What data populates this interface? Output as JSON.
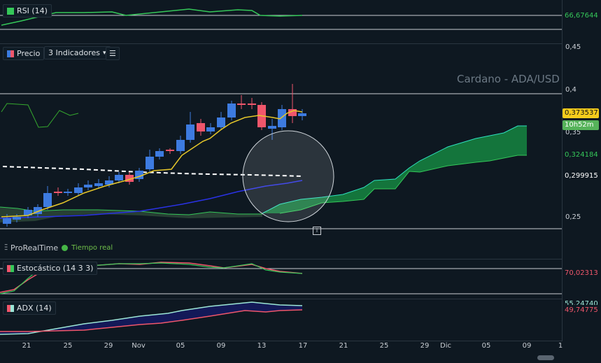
{
  "rsi": {
    "label": "RSI (14)",
    "value": "66,67644"
  },
  "price": {
    "label": "Precio",
    "indicators": "3 Indicadores",
    "watermark": "Cardano - ADA/USD",
    "ticks": [
      "0,45",
      "0,4",
      "0,35",
      "0,25"
    ],
    "badges": {
      "last": "0,373537",
      "timer": "10h52m",
      "green": "0,324184",
      "white": "0,299915"
    },
    "brand": "ProRealTime",
    "realtime": "Tiempo real",
    "info_icon": "i"
  },
  "stochastic": {
    "label": "Estocástico (14 3 3)",
    "value": "70,02313"
  },
  "adx": {
    "label": "ADX (14)",
    "value": "49,74775",
    "value2": "55,24740"
  },
  "xaxis": [
    "21",
    "25",
    "29",
    "Nov",
    "05",
    "09",
    "13",
    "17",
    "21",
    "25",
    "29",
    "Dic",
    "05",
    "09",
    "1"
  ],
  "colors": {
    "up": "#3d7be0",
    "down": "#f0566b",
    "ma": "#e6c72a",
    "cloud": "#1f9a4d",
    "rsi": "#35c759"
  }
}
